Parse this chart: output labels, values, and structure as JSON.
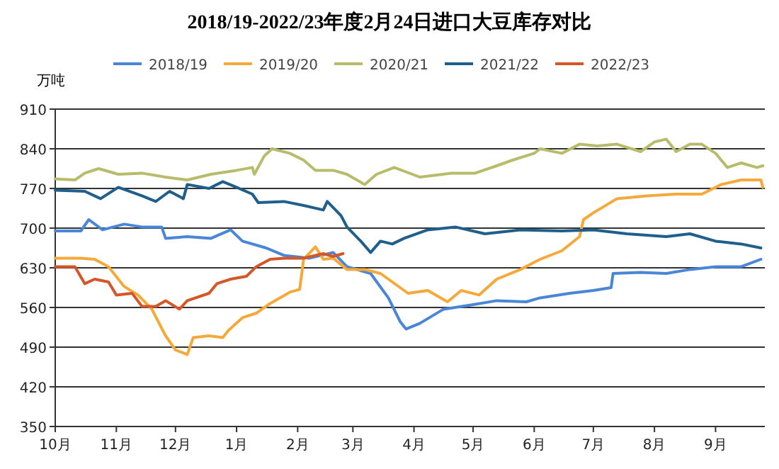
{
  "chart_data": {
    "type": "line",
    "title": "2018/19-2022/23年度2月24日进口大豆库存对比",
    "ylabel": "万吨",
    "xlim": [
      "2022-10-01",
      "2023-09-26"
    ],
    "xticks": [
      {
        "value": "2022-10-01",
        "label": "10月"
      },
      {
        "value": "2022-11-01",
        "label": "11月"
      },
      {
        "value": "2022-12-01",
        "label": "12月"
      },
      {
        "value": "2023-01-01",
        "label": "1月"
      },
      {
        "value": "2023-02-01",
        "label": "2月"
      },
      {
        "value": "2023-03-01",
        "label": "3月"
      },
      {
        "value": "2023-04-01",
        "label": "4月"
      },
      {
        "value": "2023-05-01",
        "label": "5月"
      },
      {
        "value": "2023-06-01",
        "label": "6月"
      },
      {
        "value": "2023-07-01",
        "label": "7月"
      },
      {
        "value": "2023-08-01",
        "label": "8月"
      },
      {
        "value": "2023-09-01",
        "label": "9月"
      }
    ],
    "ylim": [
      350,
      910
    ],
    "yticks": [
      350,
      420,
      490,
      560,
      630,
      700,
      770,
      840,
      910
    ],
    "grid": "y",
    "legend": "top",
    "series": [
      {
        "name": "2018/19",
        "color": "#4a86d8",
        "x": [
          "2022-10-01",
          "2022-10-14",
          "2022-10-18",
          "2022-10-25",
          "2022-11-05",
          "2022-11-14",
          "2022-11-24",
          "2022-11-26",
          "2022-12-07",
          "2022-12-19",
          "2022-12-29",
          "2023-01-04",
          "2023-01-16",
          "2023-01-25",
          "2023-02-07",
          "2023-02-19",
          "2023-02-26",
          "2023-03-10",
          "2023-03-19",
          "2023-03-25",
          "2023-03-28",
          "2023-04-04",
          "2023-04-16",
          "2023-05-01",
          "2023-05-13",
          "2023-05-28",
          "2023-06-04",
          "2023-06-19",
          "2023-07-01",
          "2023-07-10",
          "2023-07-11",
          "2023-07-25",
          "2023-08-07",
          "2023-08-19",
          "2023-09-01",
          "2023-09-14",
          "2023-09-24"
        ],
        "values": [
          695,
          695,
          715,
          697,
          707,
          702,
          702,
          682,
          685,
          682,
          697,
          677,
          665,
          652,
          647,
          657,
          632,
          620,
          577,
          535,
          522,
          532,
          557,
          565,
          572,
          570,
          577,
          585,
          590,
          595,
          620,
          622,
          620,
          627,
          632,
          632,
          645
        ]
      },
      {
        "name": "2019/20",
        "color": "#f5a93a",
        "x": [
          "2022-10-01",
          "2022-10-14",
          "2022-10-21",
          "2022-10-28",
          "2022-11-05",
          "2022-11-12",
          "2022-11-19",
          "2022-11-26",
          "2022-12-01",
          "2022-12-07",
          "2022-12-10",
          "2022-12-18",
          "2022-12-25",
          "2022-12-28",
          "2023-01-04",
          "2023-01-11",
          "2023-01-18",
          "2023-01-28",
          "2023-02-02",
          "2023-02-04",
          "2023-02-10",
          "2023-02-14",
          "2023-02-19",
          "2023-02-26",
          "2023-03-07",
          "2023-03-15",
          "2023-03-29",
          "2023-04-08",
          "2023-04-18",
          "2023-04-25",
          "2023-05-04",
          "2023-05-13",
          "2023-05-25",
          "2023-06-04",
          "2023-06-15",
          "2023-06-24",
          "2023-06-26",
          "2023-07-01",
          "2023-07-13",
          "2023-07-28",
          "2023-08-12",
          "2023-08-25",
          "2023-09-04",
          "2023-09-14",
          "2023-09-24",
          "2023-09-25"
        ],
        "values": [
          647,
          647,
          645,
          632,
          597,
          582,
          557,
          510,
          485,
          477,
          507,
          510,
          507,
          520,
          542,
          550,
          567,
          587,
          592,
          645,
          667,
          645,
          647,
          627,
          627,
          620,
          585,
          590,
          570,
          590,
          582,
          610,
          627,
          645,
          660,
          685,
          715,
          727,
          752,
          757,
          760,
          760,
          777,
          785,
          785,
          772
        ]
      },
      {
        "name": "2020/21",
        "color": "#b8bc6a",
        "x": [
          "2022-10-01",
          "2022-10-11",
          "2022-10-16",
          "2022-10-23",
          "2022-11-02",
          "2022-11-14",
          "2022-11-26",
          "2022-12-07",
          "2022-12-19",
          "2023-01-01",
          "2023-01-09",
          "2023-01-10",
          "2023-01-15",
          "2023-01-19",
          "2023-01-28",
          "2023-02-04",
          "2023-02-10",
          "2023-02-19",
          "2023-02-26",
          "2023-03-07",
          "2023-03-13",
          "2023-03-22",
          "2023-04-04",
          "2023-04-20",
          "2023-05-02",
          "2023-05-13",
          "2023-05-21",
          "2023-06-01",
          "2023-06-04",
          "2023-06-15",
          "2023-06-24",
          "2023-07-03",
          "2023-07-13",
          "2023-07-25",
          "2023-08-01",
          "2023-08-07",
          "2023-08-12",
          "2023-08-19",
          "2023-08-25",
          "2023-09-01",
          "2023-09-07",
          "2023-09-14",
          "2023-09-22",
          "2023-09-25"
        ],
        "values": [
          787,
          785,
          797,
          805,
          795,
          797,
          790,
          785,
          795,
          802,
          807,
          795,
          827,
          840,
          832,
          820,
          802,
          802,
          795,
          777,
          795,
          807,
          790,
          797,
          797,
          810,
          820,
          832,
          840,
          832,
          848,
          845,
          848,
          835,
          852,
          857,
          835,
          848,
          848,
          832,
          807,
          815,
          807,
          810
        ]
      },
      {
        "name": "2021/22",
        "color": "#1f5f8b",
        "x": [
          "2022-10-01",
          "2022-10-16",
          "2022-10-24",
          "2022-11-02",
          "2022-11-14",
          "2022-11-21",
          "2022-11-28",
          "2022-12-05",
          "2022-12-07",
          "2022-12-18",
          "2022-12-25",
          "2023-01-01",
          "2023-01-09",
          "2023-01-12",
          "2023-01-25",
          "2023-02-04",
          "2023-02-14",
          "2023-02-16",
          "2023-02-23",
          "2023-02-26",
          "2023-03-05",
          "2023-03-10",
          "2023-03-15",
          "2023-03-21",
          "2023-03-27",
          "2023-04-08",
          "2023-04-22",
          "2023-05-07",
          "2023-05-25",
          "2023-06-15",
          "2023-07-01",
          "2023-07-18",
          "2023-08-07",
          "2023-08-19",
          "2023-09-01",
          "2023-09-14",
          "2023-09-24"
        ],
        "values": [
          767,
          765,
          752,
          772,
          757,
          747,
          765,
          752,
          777,
          770,
          782,
          772,
          760,
          745,
          747,
          740,
          732,
          747,
          722,
          702,
          677,
          657,
          677,
          672,
          682,
          697,
          702,
          690,
          697,
          695,
          697,
          690,
          685,
          690,
          677,
          672,
          665
        ]
      },
      {
        "name": "2022/23",
        "color": "#d4572a",
        "x": [
          "2022-10-01",
          "2022-10-11",
          "2022-10-16",
          "2022-10-21",
          "2022-10-28",
          "2022-11-01",
          "2022-11-09",
          "2022-11-14",
          "2022-11-21",
          "2022-11-26",
          "2022-12-03",
          "2022-12-07",
          "2022-12-18",
          "2022-12-22",
          "2022-12-29",
          "2023-01-06",
          "2023-01-11",
          "2023-01-18",
          "2023-01-25",
          "2023-02-04",
          "2023-02-14",
          "2023-02-19",
          "2023-02-24"
        ],
        "values": [
          632,
          632,
          602,
          610,
          605,
          582,
          585,
          562,
          562,
          572,
          557,
          572,
          585,
          602,
          610,
          615,
          632,
          645,
          647,
          647,
          655,
          650,
          655
        ]
      }
    ]
  }
}
